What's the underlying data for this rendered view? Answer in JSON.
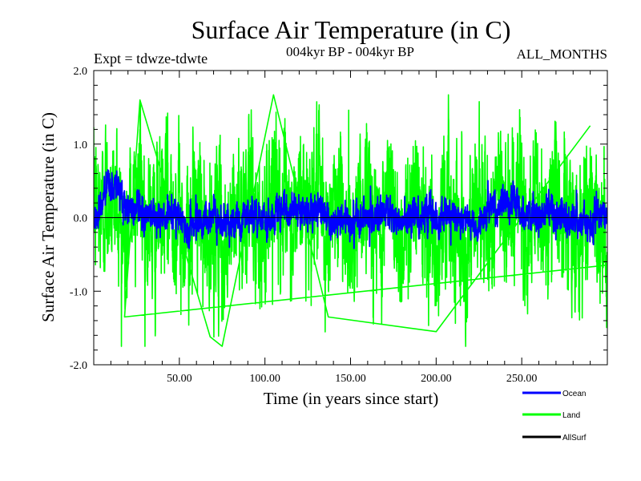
{
  "chart_data": {
    "type": "line",
    "title": "Surface Air Temperature (in C)",
    "subtitle_left": "Expt = tdwze-tdwte",
    "subtitle_center": "004kyr BP - 004kyr BP",
    "subtitle_right": "ALL_MONTHS",
    "xlabel": "Time (in years since start)",
    "ylabel": "Surface Air Temperature (in C)",
    "xlim": [
      0,
      300
    ],
    "ylim": [
      -2.0,
      2.0
    ],
    "x_ticks": [
      50,
      100,
      150,
      200,
      250
    ],
    "x_tick_labels": [
      "50.00",
      "100.00",
      "150.00",
      "200.00",
      "250.00"
    ],
    "y_ticks": [
      -2.0,
      -1.0,
      0.0,
      1.0,
      2.0
    ],
    "y_tick_labels": [
      "-2.0",
      "-1.0",
      "0.0",
      "1.0",
      "2.0"
    ],
    "zero_line": true,
    "grid": false,
    "legend_placement": "bottom-right",
    "series": [
      {
        "name": "Land",
        "color": "#00ff00",
        "resolution": "monthly",
        "approx_std": 0.45,
        "range": [
          -1.75,
          1.67
        ],
        "x": [
          5,
          10,
          15,
          18,
          23,
          27,
          30,
          35,
          40,
          47,
          50,
          52,
          60,
          65,
          68,
          72,
          75,
          80,
          85,
          90,
          98,
          102,
          105,
          110,
          115,
          120,
          125,
          130,
          137,
          140,
          145,
          150,
          155,
          160,
          167,
          172,
          175,
          180,
          185,
          190,
          195,
          200,
          205,
          210,
          215,
          220,
          225,
          230,
          235,
          240,
          245,
          250,
          255,
          258,
          262,
          265,
          270,
          275,
          280,
          285,
          290,
          295
        ],
        "y": [
          0.3,
          0.9,
          0.5,
          -1.35,
          0.7,
          1.6,
          0.2,
          -0.6,
          0.4,
          0.3,
          0.1,
          -0.7,
          0.4,
          -0.9,
          -1.62,
          0.5,
          -1.75,
          -0.4,
          0.5,
          0.9,
          -1.2,
          0.8,
          1.67,
          0.3,
          -0.9,
          0.7,
          0.5,
          1.0,
          -1.35,
          1.1,
          0.3,
          -1.0,
          0.6,
          1.0,
          -0.8,
          1.1,
          0.4,
          -1.2,
          0.5,
          1.0,
          0.2,
          -1.55,
          0.8,
          0.4,
          -0.6,
          -1.1,
          0.9,
          -0.8,
          0.6,
          0.8,
          0.3,
          0.9,
          -0.9,
          1.0,
          -1.0,
          0.7,
          0.6,
          0.2,
          -0.8,
          -0.9,
          1.25,
          -1.0
        ]
      },
      {
        "name": "Ocean",
        "color": "#0000ff",
        "resolution": "monthly",
        "approx_std": 0.13,
        "range": [
          -0.42,
          0.65
        ],
        "x": [
          0,
          5,
          10,
          15,
          20,
          25,
          30,
          35,
          40,
          45,
          50,
          55,
          60,
          65,
          70,
          75,
          80,
          85,
          90,
          95,
          100,
          105,
          110,
          115,
          120,
          125,
          130,
          135,
          140,
          145,
          150,
          155,
          160,
          165,
          170,
          175,
          180,
          185,
          190,
          195,
          200,
          205,
          210,
          215,
          220,
          225,
          230,
          235,
          240,
          245,
          250,
          255,
          260,
          265,
          270,
          275,
          280,
          285,
          290,
          295,
          300
        ],
        "y": [
          -0.05,
          0.2,
          0.45,
          0.35,
          0.1,
          0.15,
          0.0,
          0.05,
          -0.05,
          0.05,
          0.0,
          -0.2,
          0.0,
          -0.05,
          0.05,
          -0.1,
          0.0,
          -0.05,
          0.05,
          0.0,
          0.0,
          0.05,
          0.15,
          0.05,
          0.1,
          0.05,
          0.1,
          0.0,
          -0.15,
          0.05,
          -0.05,
          0.0,
          0.05,
          0.0,
          0.05,
          0.0,
          -0.05,
          0.05,
          0.0,
          0.1,
          -0.05,
          0.1,
          0.0,
          -0.05,
          -0.1,
          -0.15,
          0.15,
          0.1,
          0.2,
          0.25,
          0.1,
          0.05,
          0.0,
          0.1,
          0.05,
          0.0,
          -0.05,
          0.0,
          -0.05,
          0.1,
          0.05
        ]
      },
      {
        "name": "AllSurf",
        "color": "#000000",
        "drawn": false
      }
    ]
  }
}
